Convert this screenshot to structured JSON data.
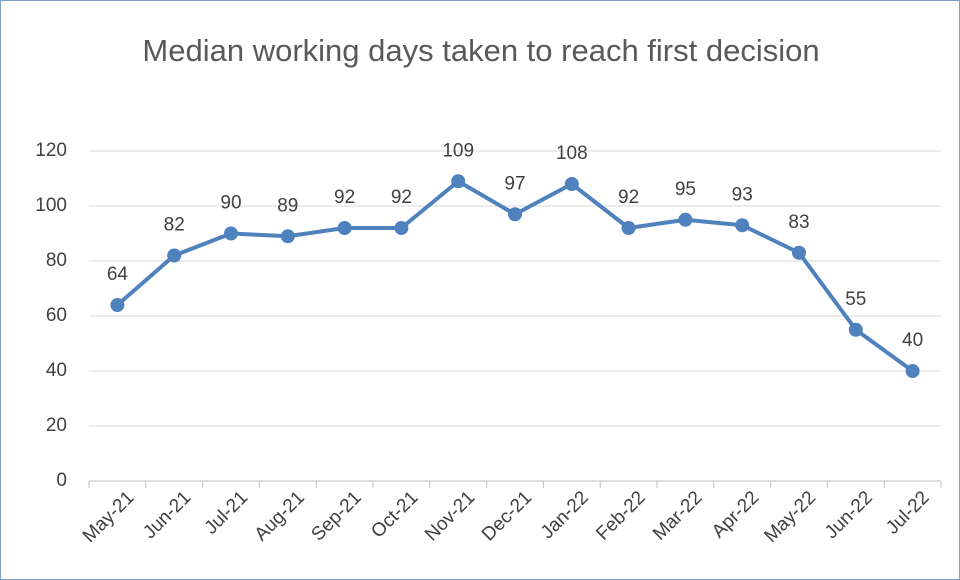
{
  "chart_data": {
    "type": "line",
    "title": "Median working days taken to reach first decision",
    "categories": [
      "May-21",
      "Jun-21",
      "Jul-21",
      "Aug-21",
      "Sep-21",
      "Oct-21",
      "Nov-21",
      "Dec-21",
      "Jan-22",
      "Feb-22",
      "Mar-22",
      "Apr-22",
      "May-22",
      "Jun-22",
      "Jul-22"
    ],
    "series": [
      {
        "name": "Median working days",
        "color": "#4f81bd",
        "values": [
          64,
          82,
          90,
          89,
          92,
          92,
          109,
          97,
          108,
          92,
          95,
          93,
          83,
          55,
          40
        ]
      }
    ],
    "ylim": [
      0,
      120
    ],
    "yticks": [
      0,
      20,
      40,
      60,
      80,
      100,
      120
    ],
    "grid": true
  }
}
